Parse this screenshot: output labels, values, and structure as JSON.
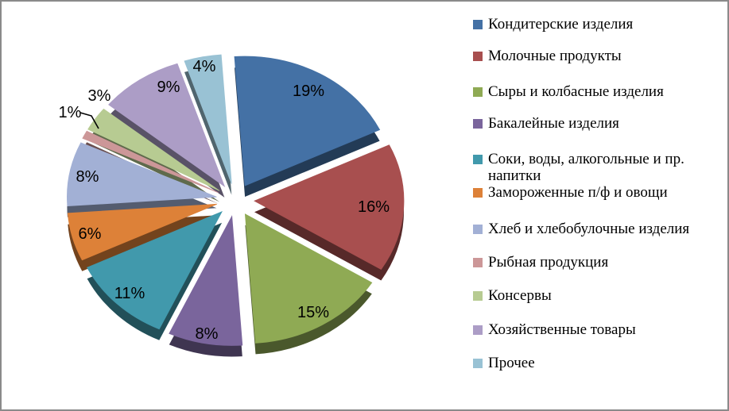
{
  "frame": {
    "background": "#ffffff",
    "border_color": "#8a8a8a"
  },
  "chart_data": {
    "type": "pie",
    "style": "3d-exploded",
    "title": "",
    "legend_position": "right",
    "total": 100,
    "slices": [
      {
        "label": "Кондитерские изделия",
        "value": 19,
        "display": "19%",
        "color": "#4471a5"
      },
      {
        "label": "Молочные продукты",
        "value": 16,
        "display": "16%",
        "color": "#a84f4f"
      },
      {
        "label": "Сыры и колбасные изделия",
        "value": 15,
        "display": "15%",
        "color": "#8faa54"
      },
      {
        "label": "Бакалейные изделия",
        "value": 8,
        "display": "8%",
        "color": "#7a659c"
      },
      {
        "label": "Соки, воды, алкогольные и пр. напитки",
        "value": 11,
        "display": "11%",
        "color": "#4199ac"
      },
      {
        "label": "Замороженные п/ф и овощи",
        "value": 6,
        "display": "6%",
        "color": "#dd8138"
      },
      {
        "label": "Хлеб и хлебобулочные изделия",
        "value": 8,
        "display": "8%",
        "color": "#a2b0d5"
      },
      {
        "label": "Рыбная продукция",
        "value": 1,
        "display": "1%",
        "color": "#cc9798"
      },
      {
        "label": "Консервы",
        "value": 3,
        "display": "3%",
        "color": "#b7cb92"
      },
      {
        "label": "Хозяйственные товары",
        "value": 9,
        "display": "9%",
        "color": "#ac9dc6"
      },
      {
        "label": "Прочее",
        "value": 4,
        "display": "4%",
        "color": "#99c2d4"
      }
    ]
  }
}
